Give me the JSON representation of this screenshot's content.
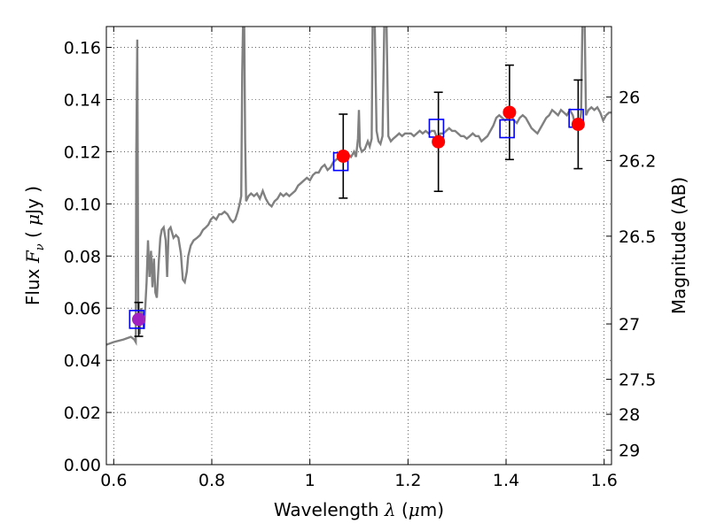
{
  "chart_data": {
    "type": "scatter",
    "xlabel_parts": [
      "Wavelength  ",
      "λ",
      " (",
      "μ",
      "m)"
    ],
    "ylabel_parts": [
      "Flux  ",
      "F",
      "ν",
      "  ( ",
      "μ",
      "Jy )"
    ],
    "y2label": "Magnitude (AB)",
    "xlim": [
      0.585,
      1.615
    ],
    "ylim": [
      0.0,
      0.168
    ],
    "grid": true,
    "x_ticks": [
      0.6,
      0.8,
      1.0,
      1.2,
      1.4,
      1.6
    ],
    "x_tick_labels": [
      "0.6",
      "0.8",
      "1",
      "1.2",
      "1.4",
      "1.6"
    ],
    "y_ticks": [
      0.0,
      0.02,
      0.04,
      0.06,
      0.08,
      0.1,
      0.12,
      0.14,
      0.16
    ],
    "y_tick_labels": [
      "0.00",
      "0.02",
      "0.04",
      "0.06",
      "0.08",
      "0.10",
      "0.12",
      "0.14",
      "0.16"
    ],
    "y2_ticks": [
      26,
      26.2,
      26.5,
      27,
      27.5,
      28,
      29
    ],
    "y2_tick_labels": [
      "26",
      "26.2",
      "26.5",
      "27",
      "27.5",
      "28",
      "29"
    ],
    "colors": {
      "spectrum": "#808080",
      "observed": "#ff0000",
      "model": "#0000ff",
      "first_point": "#a020c0",
      "errorbar": "#000000"
    },
    "observed": [
      {
        "x": 0.651,
        "y": 0.0557,
        "yerr_low": 0.0065,
        "yerr_high": 0.0065
      },
      {
        "x": 1.068,
        "y": 0.1183,
        "yerr_low": 0.0161,
        "yerr_high": 0.0161
      },
      {
        "x": 1.262,
        "y": 0.1238,
        "yerr_low": 0.019,
        "yerr_high": 0.019
      },
      {
        "x": 1.407,
        "y": 0.1351,
        "yerr_low": 0.0181,
        "yerr_high": 0.0181
      },
      {
        "x": 1.547,
        "y": 0.1305,
        "yerr_low": 0.017,
        "yerr_high": 0.017
      }
    ],
    "model_photometry": [
      {
        "x": 0.647,
        "y": 0.0557
      },
      {
        "x": 1.063,
        "y": 0.1162
      },
      {
        "x": 1.258,
        "y": 0.129
      },
      {
        "x": 1.402,
        "y": 0.1288
      },
      {
        "x": 1.543,
        "y": 0.1328
      }
    ],
    "spectrum": [
      [
        0.585,
        0.046
      ],
      [
        0.6,
        0.047
      ],
      [
        0.62,
        0.048
      ],
      [
        0.635,
        0.049
      ],
      [
        0.642,
        0.048
      ],
      [
        0.645,
        0.047
      ],
      [
        0.646,
        0.12
      ],
      [
        0.648,
        0.163
      ],
      [
        0.65,
        0.06
      ],
      [
        0.653,
        0.05
      ],
      [
        0.656,
        0.06
      ],
      [
        0.66,
        0.055
      ],
      [
        0.662,
        0.052
      ],
      [
        0.664,
        0.059
      ],
      [
        0.667,
        0.07
      ],
      [
        0.67,
        0.086
      ],
      [
        0.673,
        0.072
      ],
      [
        0.676,
        0.082
      ],
      [
        0.679,
        0.068
      ],
      [
        0.682,
        0.079
      ],
      [
        0.685,
        0.066
      ],
      [
        0.688,
        0.064
      ],
      [
        0.692,
        0.078
      ],
      [
        0.695,
        0.087
      ],
      [
        0.698,
        0.09
      ],
      [
        0.702,
        0.091
      ],
      [
        0.706,
        0.086
      ],
      [
        0.709,
        0.072
      ],
      [
        0.712,
        0.09
      ],
      [
        0.716,
        0.091
      ],
      [
        0.722,
        0.087
      ],
      [
        0.727,
        0.088
      ],
      [
        0.732,
        0.087
      ],
      [
        0.737,
        0.081
      ],
      [
        0.741,
        0.071
      ],
      [
        0.745,
        0.07
      ],
      [
        0.749,
        0.074
      ],
      [
        0.752,
        0.08
      ],
      [
        0.757,
        0.084
      ],
      [
        0.763,
        0.086
      ],
      [
        0.77,
        0.087
      ],
      [
        0.776,
        0.088
      ],
      [
        0.782,
        0.09
      ],
      [
        0.788,
        0.091
      ],
      [
        0.793,
        0.092
      ],
      [
        0.798,
        0.094
      ],
      [
        0.803,
        0.095
      ],
      [
        0.809,
        0.094
      ],
      [
        0.815,
        0.096
      ],
      [
        0.82,
        0.096
      ],
      [
        0.826,
        0.097
      ],
      [
        0.832,
        0.096
      ],
      [
        0.838,
        0.094
      ],
      [
        0.843,
        0.093
      ],
      [
        0.848,
        0.094
      ],
      [
        0.853,
        0.097
      ],
      [
        0.857,
        0.1
      ],
      [
        0.86,
        0.103
      ],
      [
        0.862,
        0.15
      ],
      [
        0.864,
        0.172
      ],
      [
        0.866,
        0.172
      ],
      [
        0.868,
        0.125
      ],
      [
        0.87,
        0.101
      ],
      [
        0.875,
        0.103
      ],
      [
        0.88,
        0.104
      ],
      [
        0.886,
        0.103
      ],
      [
        0.892,
        0.104
      ],
      [
        0.898,
        0.102
      ],
      [
        0.904,
        0.105
      ],
      [
        0.91,
        0.102
      ],
      [
        0.916,
        0.1
      ],
      [
        0.922,
        0.099
      ],
      [
        0.928,
        0.101
      ],
      [
        0.934,
        0.102
      ],
      [
        0.94,
        0.104
      ],
      [
        0.946,
        0.103
      ],
      [
        0.952,
        0.104
      ],
      [
        0.958,
        0.103
      ],
      [
        0.964,
        0.104
      ],
      [
        0.97,
        0.105
      ],
      [
        0.976,
        0.107
      ],
      [
        0.982,
        0.108
      ],
      [
        0.988,
        0.109
      ],
      [
        0.994,
        0.11
      ],
      [
        1.0,
        0.109
      ],
      [
        1.006,
        0.111
      ],
      [
        1.012,
        0.112
      ],
      [
        1.018,
        0.112
      ],
      [
        1.024,
        0.114
      ],
      [
        1.03,
        0.115
      ],
      [
        1.036,
        0.113
      ],
      [
        1.042,
        0.114
      ],
      [
        1.048,
        0.116
      ],
      [
        1.054,
        0.117
      ],
      [
        1.06,
        0.118
      ],
      [
        1.066,
        0.117
      ],
      [
        1.072,
        0.118
      ],
      [
        1.078,
        0.119
      ],
      [
        1.084,
        0.118
      ],
      [
        1.09,
        0.12
      ],
      [
        1.094,
        0.118
      ],
      [
        1.098,
        0.125
      ],
      [
        1.1,
        0.136
      ],
      [
        1.102,
        0.122
      ],
      [
        1.106,
        0.12
      ],
      [
        1.112,
        0.121
      ],
      [
        1.118,
        0.124
      ],
      [
        1.122,
        0.122
      ],
      [
        1.126,
        0.125
      ],
      [
        1.128,
        0.172
      ],
      [
        1.132,
        0.172
      ],
      [
        1.136,
        0.128
      ],
      [
        1.14,
        0.124
      ],
      [
        1.144,
        0.123
      ],
      [
        1.148,
        0.126
      ],
      [
        1.152,
        0.172
      ],
      [
        1.156,
        0.172
      ],
      [
        1.16,
        0.126
      ],
      [
        1.165,
        0.124
      ],
      [
        1.17,
        0.125
      ],
      [
        1.176,
        0.126
      ],
      [
        1.182,
        0.127
      ],
      [
        1.188,
        0.126
      ],
      [
        1.194,
        0.127
      ],
      [
        1.2,
        0.127
      ],
      [
        1.206,
        0.127
      ],
      [
        1.212,
        0.126
      ],
      [
        1.218,
        0.127
      ],
      [
        1.224,
        0.128
      ],
      [
        1.23,
        0.127
      ],
      [
        1.236,
        0.128
      ],
      [
        1.242,
        0.127
      ],
      [
        1.248,
        0.128
      ],
      [
        1.254,
        0.128
      ],
      [
        1.258,
        0.126
      ],
      [
        1.262,
        0.125
      ],
      [
        1.266,
        0.127
      ],
      [
        1.272,
        0.127
      ],
      [
        1.278,
        0.128
      ],
      [
        1.284,
        0.129
      ],
      [
        1.29,
        0.128
      ],
      [
        1.296,
        0.128
      ],
      [
        1.302,
        0.127
      ],
      [
        1.308,
        0.126
      ],
      [
        1.314,
        0.126
      ],
      [
        1.32,
        0.125
      ],
      [
        1.326,
        0.126
      ],
      [
        1.332,
        0.127
      ],
      [
        1.338,
        0.126
      ],
      [
        1.344,
        0.126
      ],
      [
        1.35,
        0.124
      ],
      [
        1.356,
        0.125
      ],
      [
        1.362,
        0.126
      ],
      [
        1.368,
        0.128
      ],
      [
        1.374,
        0.13
      ],
      [
        1.38,
        0.133
      ],
      [
        1.386,
        0.134
      ],
      [
        1.392,
        0.133
      ],
      [
        1.398,
        0.132
      ],
      [
        1.404,
        0.133
      ],
      [
        1.41,
        0.134
      ],
      [
        1.416,
        0.132
      ],
      [
        1.422,
        0.131
      ],
      [
        1.428,
        0.133
      ],
      [
        1.434,
        0.134
      ],
      [
        1.44,
        0.133
      ],
      [
        1.446,
        0.131
      ],
      [
        1.452,
        0.129
      ],
      [
        1.458,
        0.128
      ],
      [
        1.464,
        0.127
      ],
      [
        1.47,
        0.129
      ],
      [
        1.476,
        0.131
      ],
      [
        1.482,
        0.133
      ],
      [
        1.488,
        0.134
      ],
      [
        1.494,
        0.136
      ],
      [
        1.5,
        0.135
      ],
      [
        1.506,
        0.134
      ],
      [
        1.512,
        0.136
      ],
      [
        1.518,
        0.135
      ],
      [
        1.524,
        0.134
      ],
      [
        1.53,
        0.136
      ],
      [
        1.536,
        0.134
      ],
      [
        1.54,
        0.131
      ],
      [
        1.546,
        0.129
      ],
      [
        1.55,
        0.13
      ],
      [
        1.553,
        0.135
      ],
      [
        1.556,
        0.172
      ],
      [
        1.56,
        0.172
      ],
      [
        1.563,
        0.134
      ],
      [
        1.568,
        0.136
      ],
      [
        1.574,
        0.137
      ],
      [
        1.58,
        0.136
      ],
      [
        1.586,
        0.137
      ],
      [
        1.592,
        0.135
      ],
      [
        1.598,
        0.132
      ],
      [
        1.604,
        0.134
      ],
      [
        1.61,
        0.135
      ],
      [
        1.615,
        0.135
      ]
    ]
  }
}
